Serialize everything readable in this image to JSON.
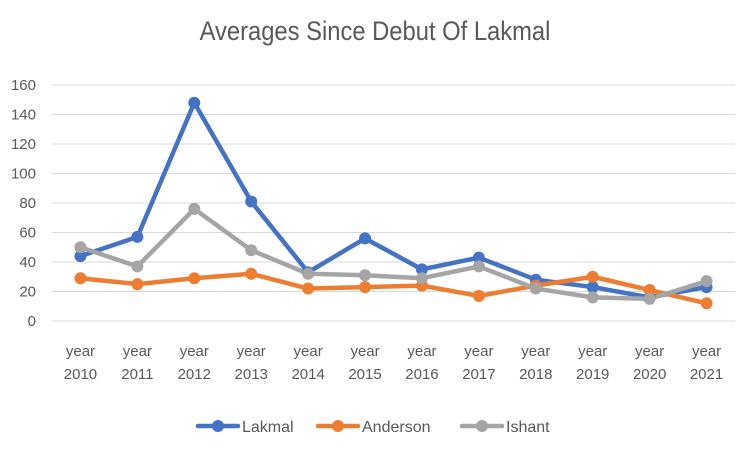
{
  "chart_data": {
    "type": "line",
    "title": "Averages Since Debut Of Lakmal",
    "xlabel": "",
    "ylabel": "",
    "ylim": [
      0,
      160
    ],
    "yticks": [
      0,
      20,
      40,
      60,
      80,
      100,
      120,
      140,
      160
    ],
    "grid": true,
    "legend_position": "bottom",
    "categories": [
      [
        "year",
        "2010"
      ],
      [
        "year",
        "2011"
      ],
      [
        "year",
        "2012"
      ],
      [
        "year",
        "2013"
      ],
      [
        "year",
        "2014"
      ],
      [
        "year",
        "2015"
      ],
      [
        "year",
        "2016"
      ],
      [
        "year",
        "2017"
      ],
      [
        "year",
        "2018"
      ],
      [
        "year",
        "2019"
      ],
      [
        "year",
        "2020"
      ],
      [
        "year",
        "2021"
      ]
    ],
    "series": [
      {
        "name": "Lakmal",
        "color": "#4472C4",
        "values": [
          44,
          57,
          148,
          81,
          33,
          56,
          35,
          43,
          28,
          23,
          16,
          23
        ]
      },
      {
        "name": "Anderson",
        "color": "#ED7D31",
        "values": [
          29,
          25,
          29,
          32,
          22,
          23,
          24,
          17,
          24,
          30,
          21,
          12
        ]
      },
      {
        "name": "Ishant",
        "color": "#A5A5A5",
        "values": [
          50,
          37,
          76,
          48,
          32,
          31,
          29,
          37,
          22,
          16,
          15,
          27
        ]
      }
    ]
  }
}
